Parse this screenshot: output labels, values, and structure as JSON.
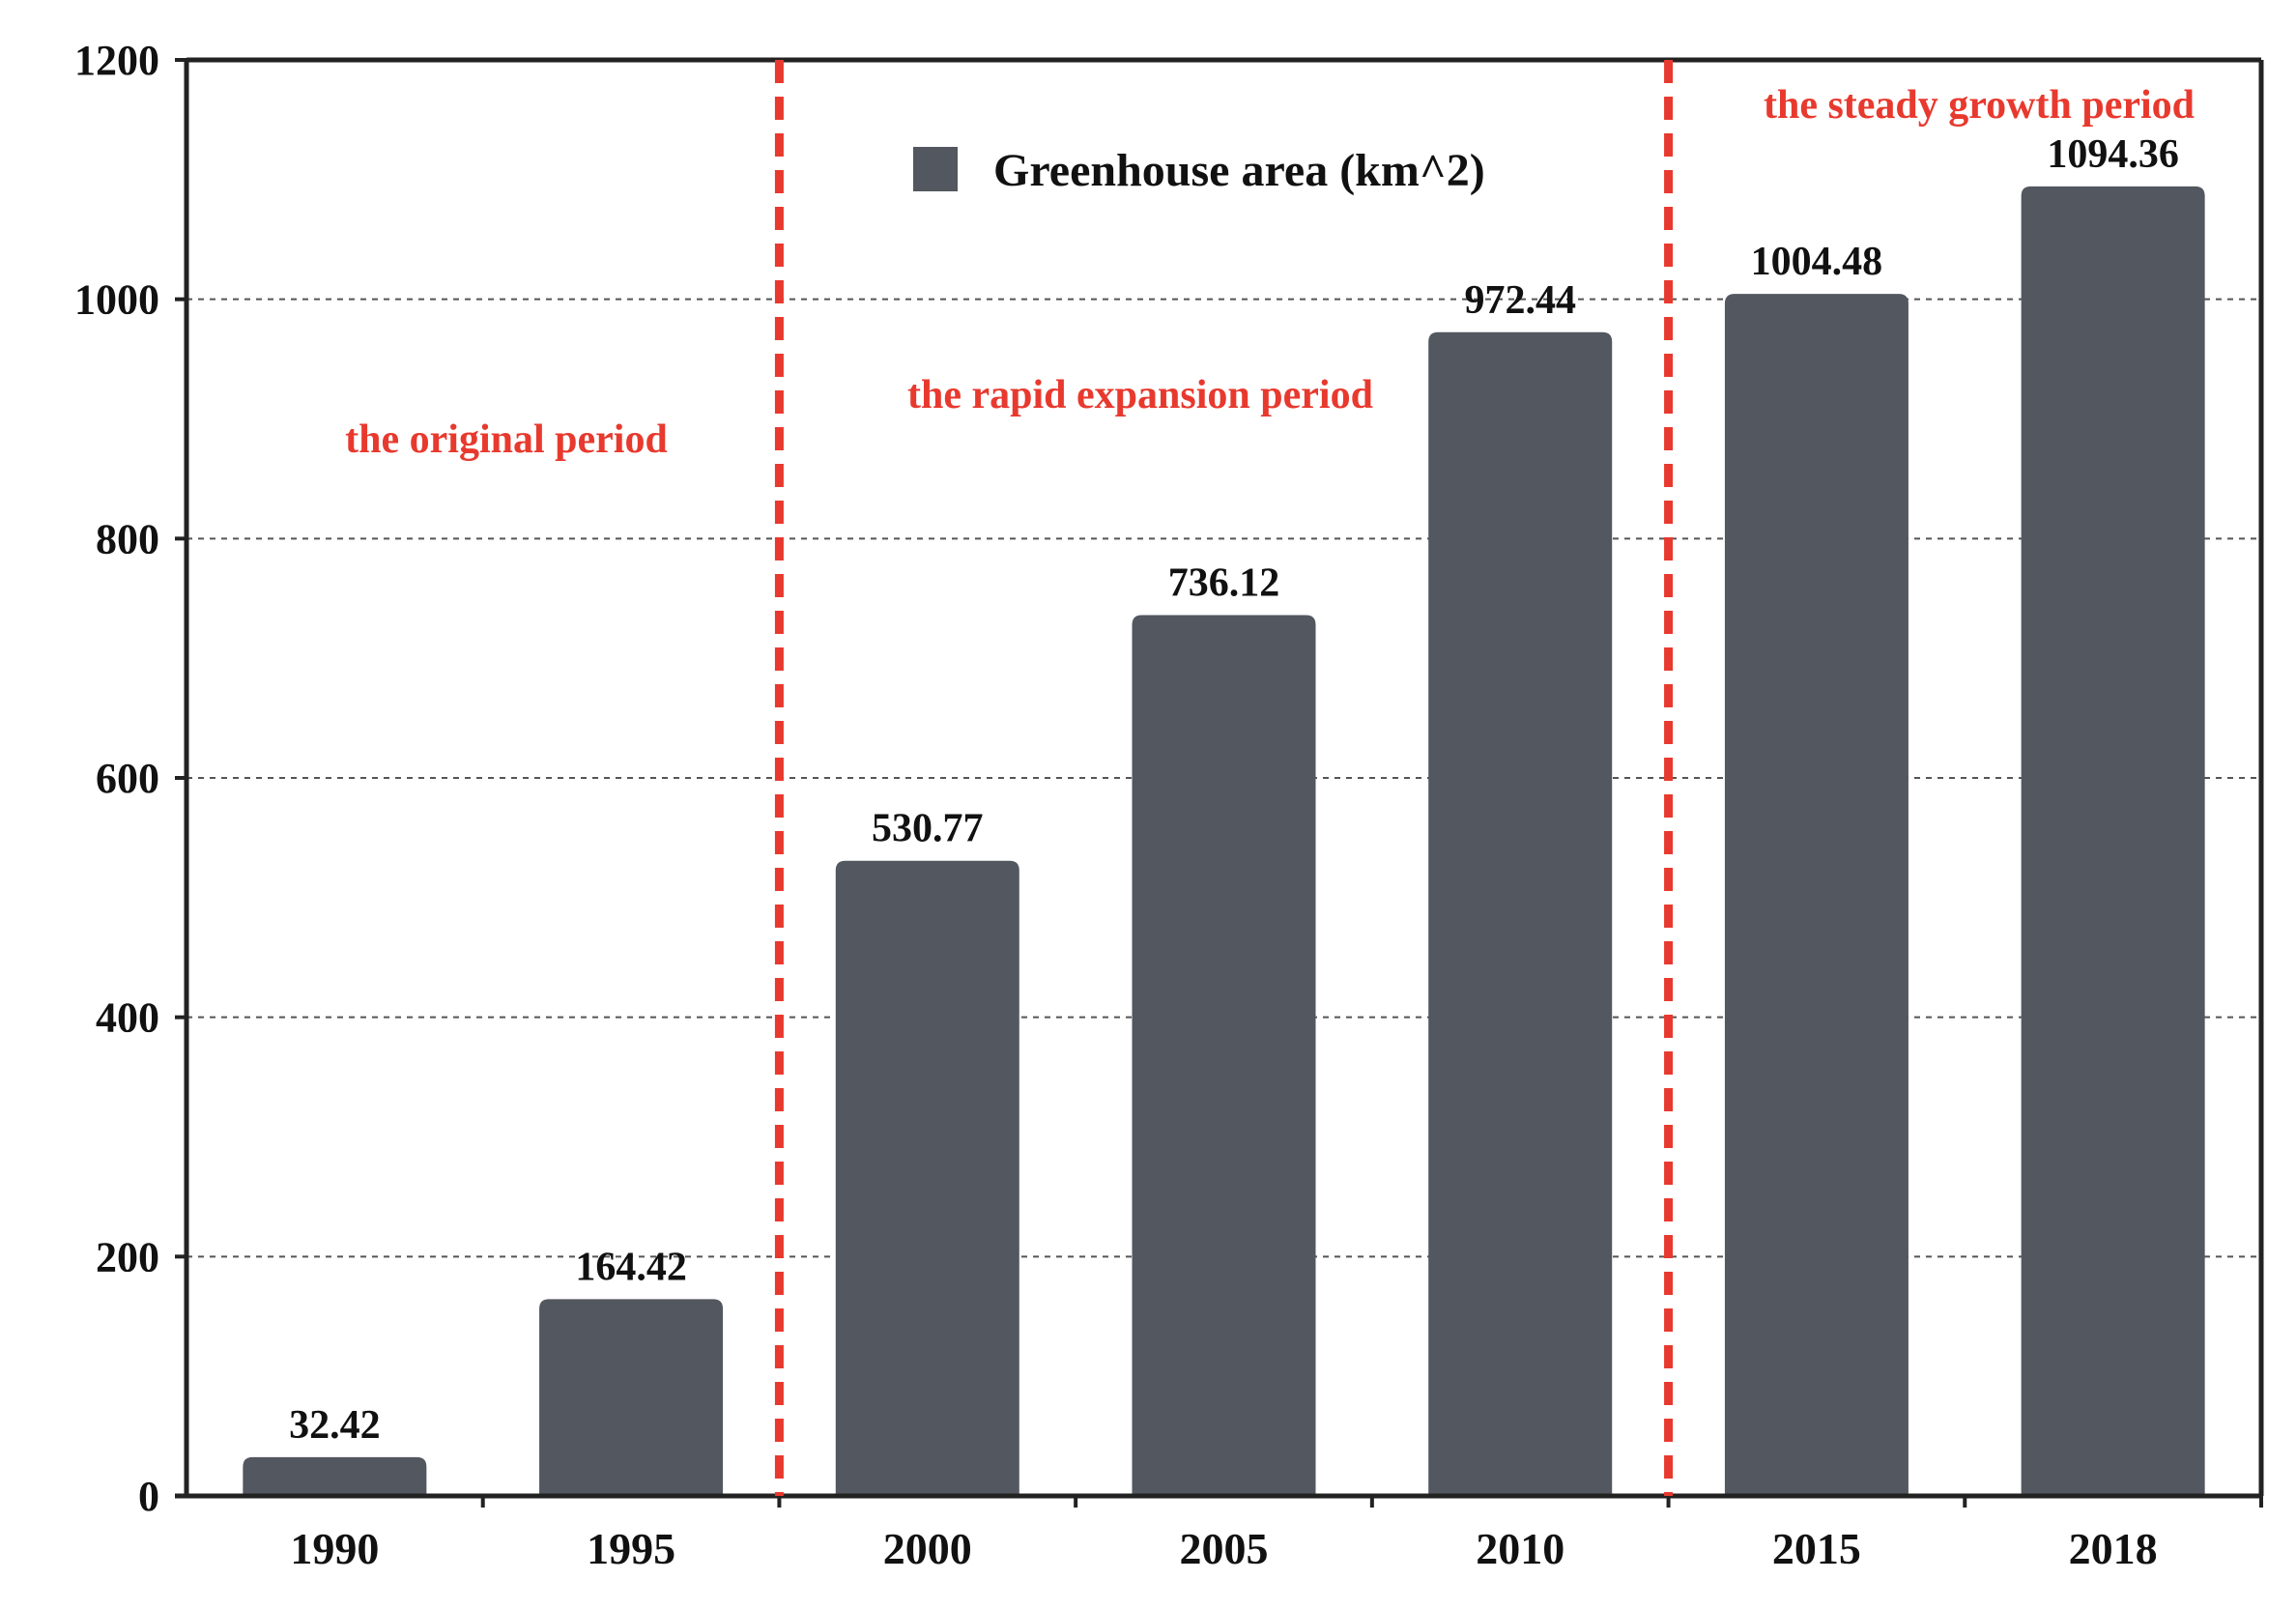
{
  "chart_data": {
    "type": "bar",
    "title": "",
    "xlabel": "",
    "ylabel": "",
    "ylim": [
      0,
      1200
    ],
    "yticks": [
      0,
      200,
      400,
      600,
      800,
      1000,
      1200
    ],
    "grid": "horizontal dashed",
    "categories": [
      "1990",
      "1995",
      "2000",
      "2005",
      "2010",
      "2015",
      "2018"
    ],
    "series": [
      {
        "name": "Greenhouse area (km^2)",
        "values": [
          32.42,
          164.42,
          530.77,
          736.12,
          972.44,
          1004.48,
          1094.36
        ],
        "value_labels": [
          "32.42",
          "164.42",
          "530.77",
          "736.12",
          "972.44",
          "1004.48",
          "1094.36"
        ]
      }
    ],
    "legend": {
      "position": "top-center",
      "label": "Greenhouse area (km^2)"
    },
    "period_dividers_after_category": [
      "1995",
      "2010"
    ],
    "periods": [
      {
        "label": "the original period"
      },
      {
        "label": "the rapid expansion period"
      },
      {
        "label": "the steady growth period"
      }
    ],
    "colors": {
      "bar": "#53575f",
      "period": "#e8392e",
      "axis": "#222222",
      "grid": "#555555"
    }
  }
}
